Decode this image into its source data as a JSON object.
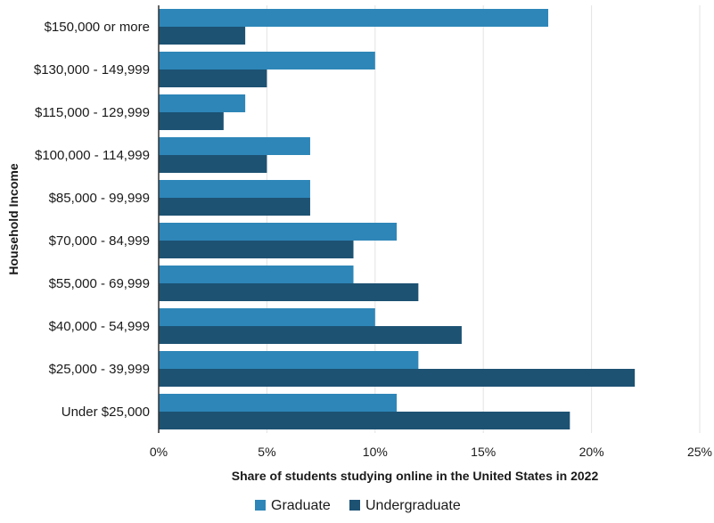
{
  "chart_data": {
    "type": "bar",
    "orientation": "horizontal",
    "categories": [
      "$150,000 or more",
      "$130,000 - 149,999",
      "$115,000 - 129,999",
      "$100,000 - 114,999",
      "$85,000 - 99,999",
      "$70,000 - 84,999",
      "$55,000 - 69,999",
      "$40,000 - 54,999",
      "$25,000 - 39,999",
      "Under $25,000"
    ],
    "series": [
      {
        "name": "Graduate",
        "color": "#2e86b8",
        "values": [
          18,
          10,
          4,
          7,
          7,
          11,
          9,
          10,
          12,
          11
        ]
      },
      {
        "name": "Undergraduate",
        "color": "#1d5273",
        "values": [
          4,
          5,
          3,
          5,
          7,
          9,
          12,
          14,
          22,
          19
        ]
      }
    ],
    "xlabel": "Share of students studying online in the United States in 2022",
    "ylabel": "Household Income",
    "xlim": [
      0,
      25
    ],
    "xticks": [
      "0%",
      "5%",
      "10%",
      "15%",
      "20%",
      "25%"
    ],
    "grid": true,
    "legend_position": "bottom"
  }
}
